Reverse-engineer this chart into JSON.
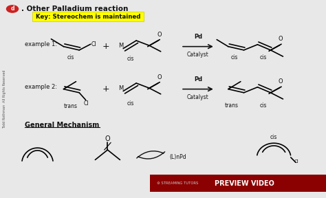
{
  "bg_color": "#e8e8e8",
  "title": ". Other Palladium reaction",
  "key_text": "Key: Stereochem is maintained",
  "key_bg": "#ffff00",
  "example1_label": "example 1:",
  "example2_label": "example 2:",
  "general_mech": "General Mechanism",
  "side_text": "Todd Rothman  All Rights Reserved",
  "watermark_text": "PREVIEW VIDEO",
  "watermark_bg": "#8b0000",
  "streaming_text": "⚙ STREAMING TUTORS",
  "bottom_label": "(L)nPd",
  "pd_text": "Pd",
  "catalyst_text": "Catalyst",
  "cis_text": "cis",
  "trans_text": "trans",
  "o_text": "O",
  "m_text": "M",
  "cl_text": "Cl"
}
